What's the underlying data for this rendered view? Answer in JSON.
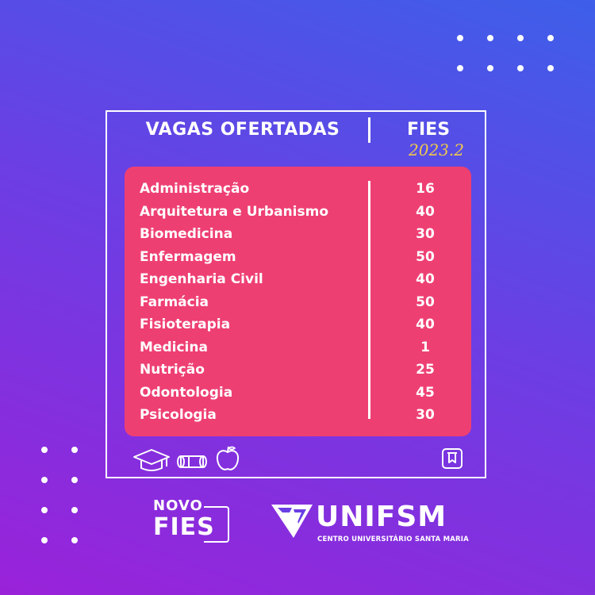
{
  "header": {
    "title": "VAGAS OFERTADAS",
    "program": "FIES",
    "year": "2023.2"
  },
  "courses": [
    {
      "name": "Administração",
      "vagas": "16"
    },
    {
      "name": "Arquitetura e Urbanismo",
      "vagas": "40"
    },
    {
      "name": "Biomedicina",
      "vagas": "30"
    },
    {
      "name": "Enfermagem",
      "vagas": "50"
    },
    {
      "name": "Engenharia Civil",
      "vagas": "40"
    },
    {
      "name": "Farmácia",
      "vagas": "50"
    },
    {
      "name": "Fisioterapia",
      "vagas": "40"
    },
    {
      "name": "Medicina",
      "vagas": "1"
    },
    {
      "name": "Nutrição",
      "vagas": "25"
    },
    {
      "name": "Odontologia",
      "vagas": "45"
    },
    {
      "name": "Psicologia",
      "vagas": "30"
    }
  ],
  "icons": [
    "graduation-cap-icon",
    "diploma-icon",
    "apple-icon",
    "book-icon"
  ],
  "logos": {
    "novo_fies": {
      "line1": "NOVO",
      "line2": "FIES"
    },
    "unifsm": {
      "name": "UNIFSM",
      "subtitle": "CENTRO UNIVERSITÁRIO SANTA MARIA"
    }
  },
  "colors": {
    "panel": "#ee3f73",
    "accent_year": "#f0c94a",
    "bg_top": "#3d5fe9",
    "bg_bottom": "#9a22d9"
  }
}
